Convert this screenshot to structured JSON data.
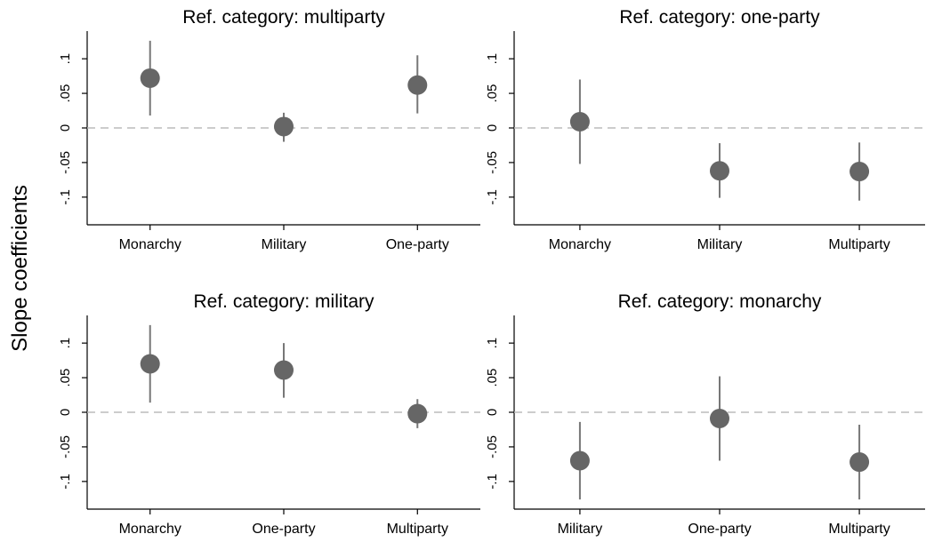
{
  "ylabel": "Slope coefficients",
  "colors": {
    "point": "#666666",
    "ci_line": "#777777",
    "zero_line": "#bbbbbb",
    "axis": "#000000"
  },
  "chart_data": [
    {
      "type": "scatter",
      "title": "Ref. category: multiparty",
      "categories": [
        "Monarchy",
        "Military",
        "One-party"
      ],
      "estimate": [
        0.072,
        0.002,
        0.062
      ],
      "ci_low": [
        0.018,
        -0.02,
        0.021
      ],
      "ci_high": [
        0.126,
        0.022,
        0.105
      ],
      "yticks": [
        "-.1",
        "-.05",
        "0",
        ".05",
        ".1"
      ],
      "ylim": [
        -0.14,
        0.14
      ],
      "reference_line": 0,
      "error_bars": true,
      "grid": false
    },
    {
      "type": "scatter",
      "title": "Ref. category: one-party",
      "categories": [
        "Monarchy",
        "Military",
        "Multiparty"
      ],
      "estimate": [
        0.009,
        -0.062,
        -0.063
      ],
      "ci_low": [
        -0.052,
        -0.101,
        -0.105
      ],
      "ci_high": [
        0.07,
        -0.022,
        -0.021
      ],
      "yticks": [
        "-.1",
        "-.05",
        "0",
        ".05",
        ".1"
      ],
      "ylim": [
        -0.14,
        0.14
      ],
      "reference_line": 0,
      "error_bars": true,
      "grid": false
    },
    {
      "type": "scatter",
      "title": "Ref. category: military",
      "categories": [
        "Monarchy",
        "One-party",
        "Multiparty"
      ],
      "estimate": [
        0.07,
        0.061,
        -0.002
      ],
      "ci_low": [
        0.014,
        0.021,
        -0.023
      ],
      "ci_high": [
        0.126,
        0.1,
        0.019
      ],
      "yticks": [
        "-.1",
        "-.05",
        "0",
        ".05",
        ".1"
      ],
      "ylim": [
        -0.14,
        0.14
      ],
      "reference_line": 0,
      "error_bars": true,
      "grid": false
    },
    {
      "type": "scatter",
      "title": "Ref. category: monarchy",
      "categories": [
        "Military",
        "One-party",
        "Multiparty"
      ],
      "estimate": [
        -0.07,
        -0.009,
        -0.072
      ],
      "ci_low": [
        -0.126,
        -0.07,
        -0.126
      ],
      "ci_high": [
        -0.014,
        0.052,
        -0.018
      ],
      "yticks": [
        "-.1",
        "-.05",
        "0",
        ".05",
        ".1"
      ],
      "ylim": [
        -0.14,
        0.14
      ],
      "reference_line": 0,
      "error_bars": true,
      "grid": false
    }
  ]
}
